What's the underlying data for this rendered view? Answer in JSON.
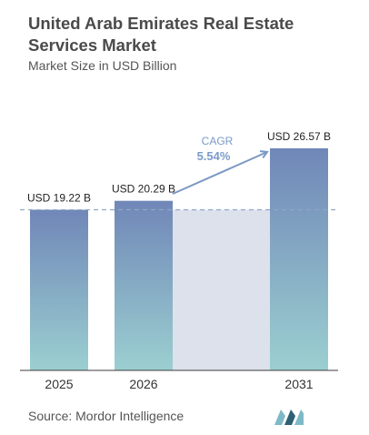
{
  "title": "United Arab Emirates Real Estate Services Market",
  "subtitle": "Market Size in USD Billion",
  "source": "Source:  Mordor Intelligence",
  "colors": {
    "bar_top": "#7087b8",
    "bar_bottom": "#9bcfd0",
    "band": "#dde1ec",
    "dashed": "#8fa9c5",
    "arrow": "#7b98c5",
    "cagr_label": "#7a9bc9",
    "logo_light": "#7fb9c8",
    "logo_dark": "#2e5f73"
  },
  "chart_data": {
    "type": "bar",
    "categories": [
      "2025",
      "2026",
      "2031"
    ],
    "values": [
      19.22,
      20.29,
      26.57
    ],
    "data_labels": [
      "USD 19.22 B",
      "USD 20.29 B",
      "USD 26.57 B"
    ],
    "annotation": {
      "label": "CAGR",
      "value": "5.54%"
    },
    "xlabel": "",
    "ylabel": "",
    "ylim": [
      0,
      26.57
    ],
    "grid": false,
    "legend": "none"
  }
}
